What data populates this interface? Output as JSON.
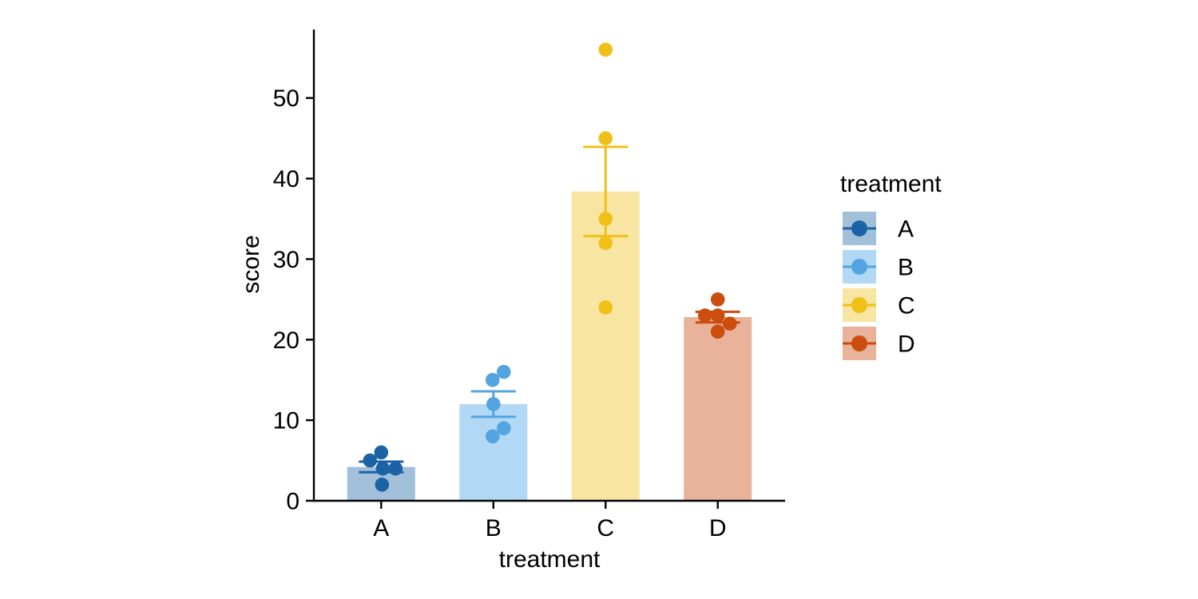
{
  "figure": {
    "background": "#ffffff",
    "axis_color": "#000000",
    "text_color": "#000000"
  },
  "chart_data": {
    "type": "bar",
    "subtype": "bar-with-points-and-errorbars",
    "title": "",
    "xlabel": "treatment",
    "ylabel": "score",
    "legend_title": "treatment",
    "legend_position": "right",
    "grid": false,
    "categories": [
      "A",
      "B",
      "C",
      "D"
    ],
    "y_ticks": [
      0,
      10,
      20,
      30,
      40,
      50
    ],
    "y_tick_labels": [
      "0",
      "10",
      "20",
      "30",
      "40",
      "50"
    ],
    "ylim": [
      0,
      58.5
    ],
    "error_type": "mean_se",
    "series": [
      {
        "name": "A",
        "bar_fill": "#a3c0db",
        "point_color": "#1b63a5",
        "mean": 4.2,
        "se": 0.66,
        "points": [
          {
            "v": 2,
            "dx": 1
          },
          {
            "v": 4,
            "dx": 2
          },
          {
            "v": 4,
            "dx": 18
          },
          {
            "v": 5,
            "dx": -14
          },
          {
            "v": 6,
            "dx": 0
          }
        ]
      },
      {
        "name": "B",
        "bar_fill": "#b1d8f4",
        "point_color": "#54a4e1",
        "mean": 12.0,
        "se": 1.58,
        "points": [
          {
            "v": 8,
            "dx": -1
          },
          {
            "v": 9,
            "dx": 13
          },
          {
            "v": 12,
            "dx": 0
          },
          {
            "v": 15,
            "dx": -1
          },
          {
            "v": 16,
            "dx": 13
          }
        ]
      },
      {
        "name": "C",
        "bar_fill": "#f8e5a1",
        "point_color": "#efc018",
        "mean": 38.4,
        "se": 5.54,
        "points": [
          {
            "v": 24,
            "dx": 0
          },
          {
            "v": 32,
            "dx": 0
          },
          {
            "v": 35,
            "dx": 0
          },
          {
            "v": 45,
            "dx": 0
          },
          {
            "v": 56,
            "dx": 0
          }
        ]
      },
      {
        "name": "D",
        "bar_fill": "#e9b29a",
        "point_color": "#cc4e0f",
        "mean": 22.8,
        "se": 0.66,
        "points": [
          {
            "v": 21,
            "dx": 0
          },
          {
            "v": 22,
            "dx": 15
          },
          {
            "v": 23,
            "dx": -16
          },
          {
            "v": 23,
            "dx": 0
          },
          {
            "v": 25,
            "dx": 0
          }
        ]
      }
    ]
  }
}
